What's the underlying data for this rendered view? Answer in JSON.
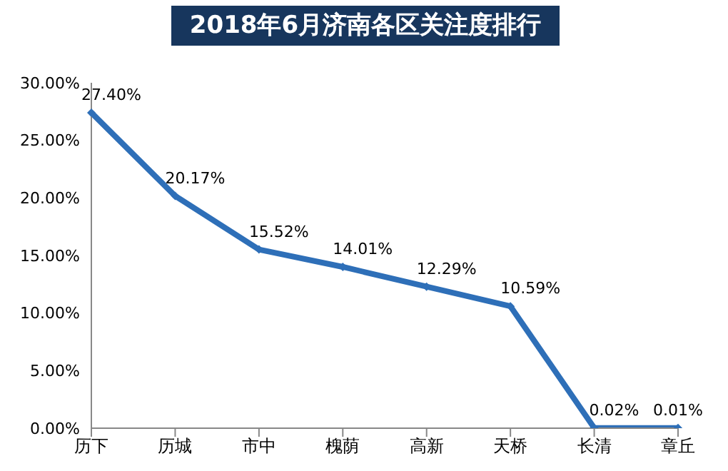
{
  "chart_data": {
    "type": "line",
    "title": "2018年6月济南各区关注度排行",
    "categories": [
      "历下",
      "历城",
      "市中",
      "槐荫",
      "高新",
      "天桥",
      "长清",
      "章丘"
    ],
    "series": [
      {
        "color": "#2e6fb8",
        "values": [
          27.4,
          20.17,
          15.52,
          14.01,
          12.29,
          10.59,
          0.02,
          0.01
        ],
        "value_labels": [
          "27.40%",
          "20.17%",
          "15.52%",
          "14.01%",
          "12.29%",
          "10.59%",
          "0.02%",
          "0.01%"
        ]
      }
    ],
    "ylim": [
      0,
      30
    ],
    "yticks": [
      {
        "value": 0,
        "label": "0.00%"
      },
      {
        "value": 5,
        "label": "5.00%"
      },
      {
        "value": 10,
        "label": "10.00%"
      },
      {
        "value": 15,
        "label": "15.00%"
      },
      {
        "value": 20,
        "label": "20.00%"
      },
      {
        "value": 25,
        "label": "25.00%"
      },
      {
        "value": 30,
        "label": "30.00%"
      }
    ],
    "grid": false,
    "legend": false,
    "marker": "diamond",
    "line_style": "solid"
  }
}
